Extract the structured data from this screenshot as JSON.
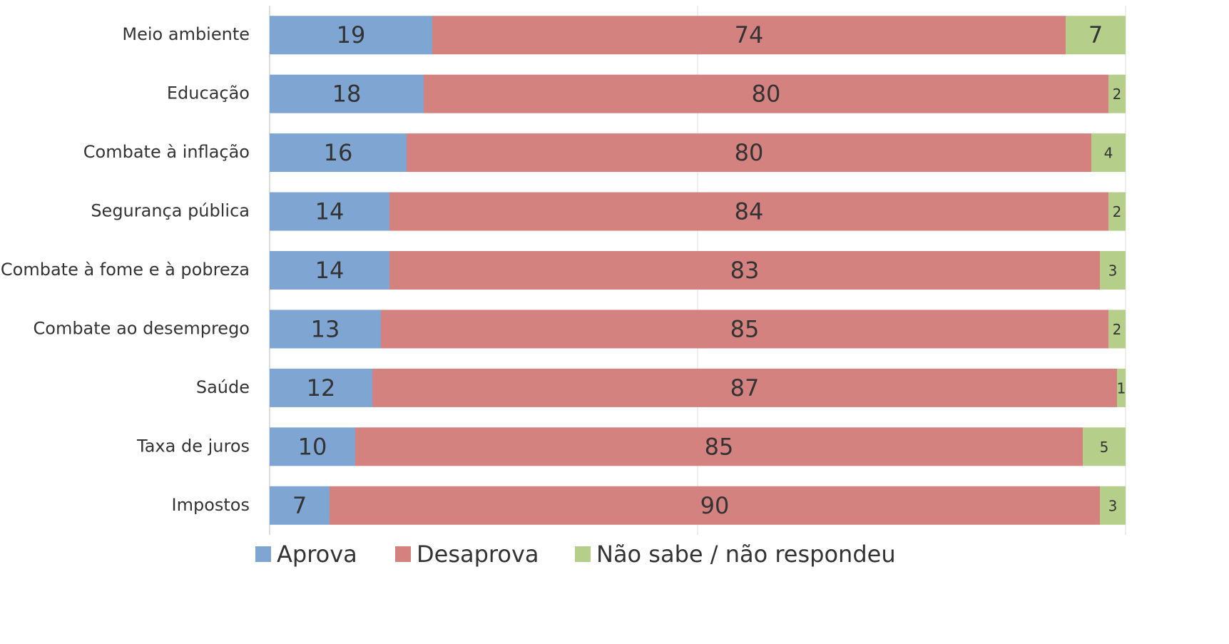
{
  "chart_data": {
    "type": "stacked-bar-horizontal",
    "categories": [
      "Meio ambiente",
      "Educação",
      "Combate à inflação",
      "Segurança pública",
      "Combate à fome e à pobreza",
      "Combate ao desemprego",
      "Saúde",
      "Taxa de juros",
      "Impostos"
    ],
    "series": [
      {
        "name": "Aprova",
        "color": "#7fa6d2",
        "values": [
          19,
          18,
          16,
          14,
          14,
          13,
          12,
          10,
          7
        ]
      },
      {
        "name": "Desaprova",
        "color": "#d48280",
        "values": [
          74,
          80,
          80,
          84,
          83,
          85,
          87,
          85,
          90
        ]
      },
      {
        "name": "Não sabe / não respondeu",
        "color": "#b5cf8b",
        "values": [
          7,
          2,
          4,
          2,
          3,
          2,
          1,
          5,
          3
        ]
      }
    ],
    "xlim": [
      0,
      100
    ],
    "xticks": [
      0,
      50,
      100
    ],
    "grid": true,
    "legend": "bottom"
  }
}
